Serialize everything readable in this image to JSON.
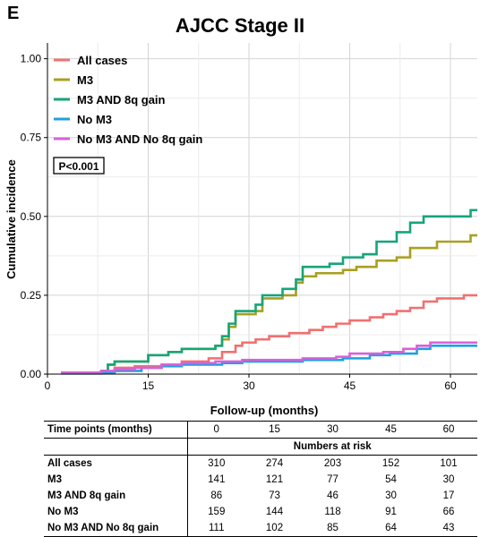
{
  "panel_letter": "E",
  "chart_data": {
    "type": "line",
    "title": "AJCC Stage II",
    "xlabel": "Follow-up (months)",
    "ylabel": "Cumulative incidence",
    "xlim": [
      0,
      64
    ],
    "ylim": [
      0,
      1.05
    ],
    "xticks": [
      "0",
      "15",
      "30",
      "45",
      "60"
    ],
    "yticks": [
      "0.00",
      "0.25",
      "0.50",
      "0.75",
      "1.00"
    ],
    "annotation": "P<0.001",
    "grid": true,
    "legend_position": "top-left",
    "series": [
      {
        "name": "All cases",
        "color": "#f07070",
        "points": [
          [
            2,
            0.003
          ],
          [
            8,
            0.008
          ],
          [
            10,
            0.02
          ],
          [
            13,
            0.025
          ],
          [
            17,
            0.03
          ],
          [
            20,
            0.04
          ],
          [
            24,
            0.05
          ],
          [
            26,
            0.07
          ],
          [
            28,
            0.09
          ],
          [
            29,
            0.1
          ],
          [
            31,
            0.11
          ],
          [
            33,
            0.12
          ],
          [
            36,
            0.13
          ],
          [
            39,
            0.14
          ],
          [
            41,
            0.15
          ],
          [
            43,
            0.16
          ],
          [
            45,
            0.17
          ],
          [
            48,
            0.18
          ],
          [
            50,
            0.19
          ],
          [
            52,
            0.2
          ],
          [
            54,
            0.21
          ],
          [
            56,
            0.23
          ],
          [
            58,
            0.24
          ],
          [
            62,
            0.25
          ],
          [
            64,
            0.25
          ]
        ]
      },
      {
        "name": "M3",
        "color": "#a8a020",
        "points": [
          [
            2,
            0.005
          ],
          [
            8,
            0.01
          ],
          [
            9,
            0.03
          ],
          [
            10,
            0.04
          ],
          [
            15,
            0.06
          ],
          [
            18,
            0.07
          ],
          [
            20,
            0.08
          ],
          [
            25,
            0.09
          ],
          [
            26,
            0.11
          ],
          [
            27,
            0.15
          ],
          [
            28,
            0.19
          ],
          [
            31,
            0.2
          ],
          [
            32,
            0.24
          ],
          [
            35,
            0.25
          ],
          [
            37,
            0.29
          ],
          [
            38,
            0.31
          ],
          [
            40,
            0.32
          ],
          [
            44,
            0.33
          ],
          [
            46,
            0.34
          ],
          [
            49,
            0.36
          ],
          [
            52,
            0.37
          ],
          [
            54,
            0.4
          ],
          [
            58,
            0.42
          ],
          [
            63,
            0.44
          ],
          [
            64,
            0.44
          ]
        ]
      },
      {
        "name": "M3 AND 8q gain",
        "color": "#16a57a",
        "points": [
          [
            2,
            0.005
          ],
          [
            8,
            0.01
          ],
          [
            9,
            0.03
          ],
          [
            10,
            0.04
          ],
          [
            15,
            0.06
          ],
          [
            18,
            0.07
          ],
          [
            20,
            0.08
          ],
          [
            25,
            0.09
          ],
          [
            26,
            0.12
          ],
          [
            27,
            0.16
          ],
          [
            28,
            0.2
          ],
          [
            31,
            0.22
          ],
          [
            32,
            0.25
          ],
          [
            35,
            0.27
          ],
          [
            37,
            0.3
          ],
          [
            38,
            0.34
          ],
          [
            42,
            0.35
          ],
          [
            44,
            0.37
          ],
          [
            47,
            0.38
          ],
          [
            49,
            0.42
          ],
          [
            52,
            0.45
          ],
          [
            54,
            0.48
          ],
          [
            56,
            0.5
          ],
          [
            63,
            0.52
          ],
          [
            64,
            0.52
          ]
        ]
      },
      {
        "name": "No M3",
        "color": "#1ea0e0",
        "points": [
          [
            2,
            0.002
          ],
          [
            8,
            0.005
          ],
          [
            10,
            0.01
          ],
          [
            14,
            0.02
          ],
          [
            17,
            0.025
          ],
          [
            20,
            0.03
          ],
          [
            26,
            0.035
          ],
          [
            29,
            0.04
          ],
          [
            38,
            0.045
          ],
          [
            44,
            0.05
          ],
          [
            48,
            0.06
          ],
          [
            51,
            0.065
          ],
          [
            55,
            0.08
          ],
          [
            57,
            0.09
          ],
          [
            64,
            0.09
          ]
        ]
      },
      {
        "name": "No M3 AND No 8q gain",
        "color": "#d860d8",
        "points": [
          [
            2,
            0.004
          ],
          [
            8,
            0.01
          ],
          [
            10,
            0.015
          ],
          [
            13,
            0.02
          ],
          [
            17,
            0.03
          ],
          [
            20,
            0.035
          ],
          [
            25,
            0.04
          ],
          [
            29,
            0.045
          ],
          [
            38,
            0.05
          ],
          [
            43,
            0.055
          ],
          [
            45,
            0.065
          ],
          [
            50,
            0.07
          ],
          [
            53,
            0.08
          ],
          [
            55,
            0.09
          ],
          [
            57,
            0.1
          ],
          [
            64,
            0.1
          ]
        ]
      }
    ]
  },
  "risk_table": {
    "header_label": "Time points (months)",
    "time_points": [
      "0",
      "15",
      "30",
      "45",
      "60"
    ],
    "subheader": "Numbers at risk",
    "rows": [
      {
        "label": "All cases",
        "values": [
          "310",
          "274",
          "203",
          "152",
          "101"
        ]
      },
      {
        "label": "M3",
        "values": [
          "141",
          "121",
          "77",
          "54",
          "30"
        ]
      },
      {
        "label": "M3 AND 8q gain",
        "values": [
          "86",
          "73",
          "46",
          "30",
          "17"
        ]
      },
      {
        "label": "No M3",
        "values": [
          "159",
          "144",
          "118",
          "91",
          "66"
        ]
      },
      {
        "label": "No M3 AND No 8q gain",
        "values": [
          "111",
          "102",
          "85",
          "64",
          "43"
        ]
      }
    ]
  }
}
